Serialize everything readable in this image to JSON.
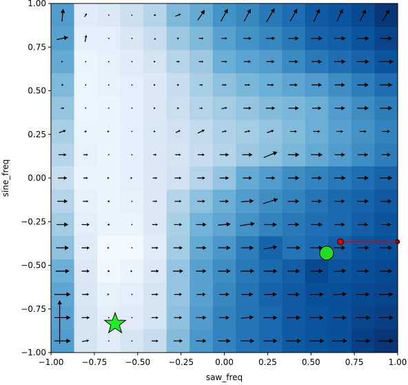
{
  "chart_data": {
    "type": "heatmap",
    "title": "",
    "xlabel": "saw_freq",
    "ylabel": "sine_freq",
    "xlim": [
      -1.0,
      1.0
    ],
    "ylim": [
      -1.0,
      1.0
    ],
    "xticks": [
      -1.0,
      -0.75,
      -0.5,
      -0.25,
      0.0,
      0.25,
      0.5,
      0.75,
      1.0
    ],
    "yticks": [
      -1.0,
      -0.75,
      -0.5,
      -0.25,
      0.0,
      0.25,
      0.5,
      0.75,
      1.0
    ],
    "xtick_labels": [
      "−1.00",
      "−0.75",
      "−0.50",
      "−0.25",
      "0.00",
      "0.25",
      "0.50",
      "0.75",
      "1.00"
    ],
    "ytick_labels": [
      "−1.00",
      "−0.75",
      "−0.50",
      "−0.25",
      "0.00",
      "0.25",
      "0.50",
      "0.75",
      "1.00"
    ],
    "grid": false,
    "heatmap": {
      "colormap": "Blues",
      "color_range": [
        0,
        1
      ],
      "cols": 15,
      "rows": 15,
      "values": [
        [
          0.58,
          0.12,
          0.14,
          0.22,
          0.3,
          0.45,
          0.52,
          0.62,
          0.66,
          0.72,
          0.76,
          0.84,
          0.86,
          0.9,
          0.97
        ],
        [
          0.56,
          0.09,
          0.1,
          0.16,
          0.24,
          0.38,
          0.45,
          0.56,
          0.62,
          0.67,
          0.72,
          0.8,
          0.82,
          0.86,
          0.92
        ],
        [
          0.52,
          0.06,
          0.08,
          0.12,
          0.18,
          0.3,
          0.38,
          0.5,
          0.55,
          0.58,
          0.65,
          0.72,
          0.76,
          0.8,
          0.86
        ],
        [
          0.45,
          0.05,
          0.07,
          0.1,
          0.14,
          0.24,
          0.34,
          0.42,
          0.46,
          0.5,
          0.54,
          0.58,
          0.64,
          0.7,
          0.76
        ],
        [
          0.4,
          0.05,
          0.06,
          0.09,
          0.14,
          0.22,
          0.3,
          0.36,
          0.4,
          0.44,
          0.46,
          0.5,
          0.58,
          0.64,
          0.7
        ],
        [
          0.34,
          0.06,
          0.06,
          0.1,
          0.15,
          0.2,
          0.26,
          0.32,
          0.36,
          0.4,
          0.44,
          0.5,
          0.56,
          0.62,
          0.68
        ],
        [
          0.3,
          0.08,
          0.06,
          0.1,
          0.14,
          0.18,
          0.24,
          0.3,
          0.38,
          0.42,
          0.46,
          0.52,
          0.58,
          0.64,
          0.7
        ],
        [
          0.24,
          0.06,
          0.06,
          0.1,
          0.14,
          0.2,
          0.3,
          0.4,
          0.52,
          0.58,
          0.64,
          0.68,
          0.72,
          0.76,
          0.8
        ],
        [
          0.3,
          0.08,
          0.06,
          0.08,
          0.14,
          0.3,
          0.42,
          0.5,
          0.58,
          0.64,
          0.68,
          0.74,
          0.78,
          0.8,
          0.84
        ],
        [
          0.36,
          0.1,
          0.06,
          0.06,
          0.14,
          0.34,
          0.48,
          0.54,
          0.62,
          0.68,
          0.72,
          0.76,
          0.78,
          0.82,
          0.86
        ],
        [
          0.42,
          0.12,
          0.02,
          0.02,
          0.12,
          0.36,
          0.52,
          0.6,
          0.7,
          0.8,
          0.74,
          0.78,
          0.82,
          0.86,
          0.88
        ],
        [
          0.5,
          0.14,
          0.04,
          0.06,
          0.14,
          0.4,
          0.56,
          0.64,
          0.72,
          0.78,
          0.82,
          0.9,
          0.86,
          0.88,
          0.9
        ],
        [
          0.54,
          0.16,
          0.08,
          0.1,
          0.18,
          0.4,
          0.56,
          0.66,
          0.74,
          0.8,
          0.84,
          0.88,
          0.88,
          0.9,
          0.92
        ],
        [
          0.56,
          0.18,
          0.1,
          0.12,
          0.18,
          0.42,
          0.58,
          0.68,
          0.74,
          0.78,
          0.84,
          0.86,
          0.88,
          0.92,
          0.94
        ],
        [
          0.58,
          0.18,
          0.12,
          0.18,
          0.24,
          0.44,
          0.6,
          0.68,
          0.74,
          0.78,
          0.84,
          0.86,
          0.88,
          0.94,
          0.98
        ]
      ]
    },
    "quiver": {
      "color": "#000000",
      "unit": "fraction of cell width",
      "vectors": [
        [
          [
            0.05,
            0.55
          ],
          [
            0.1,
            0.15
          ],
          [
            0.0,
            0.0
          ],
          [
            0.0,
            0.0
          ],
          [
            0.1,
            0.0
          ],
          [
            0.25,
            0.1
          ],
          [
            0.3,
            0.45
          ],
          [
            0.3,
            0.55
          ],
          [
            0.3,
            0.55
          ],
          [
            0.35,
            0.6
          ],
          [
            0.3,
            0.55
          ],
          [
            0.25,
            0.55
          ],
          [
            0.25,
            0.55
          ],
          [
            0.25,
            0.5
          ],
          [
            0.3,
            0.5
          ]
        ],
        [
          [
            0.5,
            0.1
          ],
          [
            0.05,
            0.3
          ],
          [
            0.0,
            0.0
          ],
          [
            0.0,
            0.0
          ],
          [
            0.0,
            0.05
          ],
          [
            0.1,
            0.0
          ],
          [
            0.2,
            0.0
          ],
          [
            0.25,
            0.0
          ],
          [
            0.35,
            0.0
          ],
          [
            0.4,
            0.0
          ],
          [
            0.45,
            0.0
          ],
          [
            0.5,
            0.0
          ],
          [
            0.5,
            0.0
          ],
          [
            0.55,
            0.0
          ],
          [
            0.55,
            0.0
          ]
        ],
        [
          [
            0.05,
            0.0
          ],
          [
            0.0,
            0.0
          ],
          [
            0.0,
            0.0
          ],
          [
            0.0,
            0.0
          ],
          [
            0.05,
            0.0
          ],
          [
            0.15,
            0.0
          ],
          [
            0.2,
            0.0
          ],
          [
            0.25,
            0.0
          ],
          [
            0.3,
            0.0
          ],
          [
            0.35,
            0.0
          ],
          [
            0.4,
            0.0
          ],
          [
            0.45,
            0.0
          ],
          [
            0.5,
            0.0
          ],
          [
            0.55,
            0.0
          ],
          [
            0.65,
            0.0
          ]
        ],
        [
          [
            0.1,
            0.0
          ],
          [
            0.0,
            0.0
          ],
          [
            0.0,
            0.0
          ],
          [
            0.0,
            0.0
          ],
          [
            0.05,
            0.0
          ],
          [
            0.1,
            0.0
          ],
          [
            0.15,
            0.0
          ],
          [
            0.2,
            0.0
          ],
          [
            0.25,
            0.0
          ],
          [
            0.3,
            0.0
          ],
          [
            0.35,
            0.0
          ],
          [
            0.45,
            0.0
          ],
          [
            0.45,
            0.0
          ],
          [
            0.5,
            0.0
          ],
          [
            0.55,
            0.0
          ]
        ],
        [
          [
            0.15,
            0.0
          ],
          [
            0.0,
            0.0
          ],
          [
            0.0,
            0.0
          ],
          [
            0.0,
            0.0
          ],
          [
            0.05,
            0.0
          ],
          [
            0.1,
            0.0
          ],
          [
            0.15,
            0.0
          ],
          [
            0.25,
            0.05
          ],
          [
            0.35,
            0.0
          ],
          [
            0.4,
            0.0
          ],
          [
            0.45,
            0.0
          ],
          [
            0.4,
            0.0
          ],
          [
            0.45,
            0.0
          ],
          [
            0.5,
            0.0
          ],
          [
            0.55,
            0.0
          ]
        ],
        [
          [
            0.3,
            0.1
          ],
          [
            0.1,
            0.05
          ],
          [
            0.05,
            0.0
          ],
          [
            0.0,
            0.0
          ],
          [
            0.05,
            0.0
          ],
          [
            0.2,
            0.1
          ],
          [
            0.3,
            0.15
          ],
          [
            0.2,
            0.05
          ],
          [
            0.25,
            0.05
          ],
          [
            0.3,
            0.1
          ],
          [
            0.3,
            0.0
          ],
          [
            0.3,
            0.0
          ],
          [
            0.3,
            0.0
          ],
          [
            0.3,
            0.0
          ],
          [
            0.35,
            0.0
          ]
        ],
        [
          [
            0.35,
            0.0
          ],
          [
            0.2,
            0.0
          ],
          [
            0.0,
            0.0
          ],
          [
            0.0,
            0.0
          ],
          [
            0.15,
            0.0
          ],
          [
            0.25,
            0.0
          ],
          [
            0.3,
            0.0
          ],
          [
            0.4,
            0.0
          ],
          [
            0.45,
            0.0
          ],
          [
            0.6,
            0.25
          ],
          [
            0.5,
            0.0
          ],
          [
            0.5,
            0.0
          ],
          [
            0.45,
            0.0
          ],
          [
            0.45,
            0.0
          ],
          [
            0.4,
            0.0
          ]
        ],
        [
          [
            0.4,
            0.0
          ],
          [
            0.2,
            0.0
          ],
          [
            0.05,
            0.0
          ],
          [
            0.05,
            0.0
          ],
          [
            0.2,
            0.0
          ],
          [
            0.3,
            0.0
          ],
          [
            0.35,
            0.0
          ],
          [
            0.4,
            0.0
          ],
          [
            0.4,
            0.0
          ],
          [
            0.4,
            0.0
          ],
          [
            0.5,
            0.0
          ],
          [
            0.45,
            0.0
          ],
          [
            0.5,
            0.0
          ],
          [
            0.5,
            0.0
          ],
          [
            0.55,
            0.0
          ]
        ],
        [
          [
            0.45,
            0.0
          ],
          [
            0.25,
            0.0
          ],
          [
            0.1,
            0.0
          ],
          [
            0.0,
            0.0
          ],
          [
            0.2,
            0.0
          ],
          [
            0.3,
            0.0
          ],
          [
            0.35,
            0.0
          ],
          [
            0.4,
            0.0
          ],
          [
            0.55,
            0.05
          ],
          [
            0.65,
            0.2
          ],
          [
            0.5,
            0.0
          ],
          [
            0.45,
            0.0
          ],
          [
            0.45,
            0.0
          ],
          [
            0.5,
            0.0
          ],
          [
            0.5,
            0.0
          ]
        ],
        [
          [
            0.5,
            0.0
          ],
          [
            0.35,
            0.0
          ],
          [
            0.1,
            0.0
          ],
          [
            0.0,
            0.0
          ],
          [
            0.25,
            0.0
          ],
          [
            0.35,
            0.0
          ],
          [
            0.45,
            0.0
          ],
          [
            0.55,
            0.05
          ],
          [
            0.65,
            0.1
          ],
          [
            0.55,
            0.0
          ],
          [
            0.5,
            0.0
          ],
          [
            0.5,
            0.0
          ],
          [
            0.45,
            0.0
          ],
          [
            0.45,
            0.0
          ],
          [
            0.45,
            0.0
          ]
        ],
        [
          [
            0.55,
            0.0
          ],
          [
            0.35,
            0.0
          ],
          [
            0.05,
            0.0
          ],
          [
            0.0,
            0.0
          ],
          [
            0.3,
            0.0
          ],
          [
            0.4,
            0.0
          ],
          [
            0.45,
            0.0
          ],
          [
            0.55,
            0.0
          ],
          [
            0.55,
            0.0
          ],
          [
            0.6,
            0.1
          ],
          [
            0.6,
            0.0
          ],
          [
            0.55,
            0.0
          ],
          [
            0.5,
            0.0
          ],
          [
            0.55,
            0.0
          ],
          [
            0.55,
            0.0
          ]
        ],
        [
          [
            0.6,
            0.0
          ],
          [
            0.35,
            0.0
          ],
          [
            0.1,
            0.0
          ],
          [
            0.05,
            0.0
          ],
          [
            0.35,
            0.0
          ],
          [
            0.45,
            0.0
          ],
          [
            0.45,
            0.0
          ],
          [
            0.55,
            0.0
          ],
          [
            0.6,
            0.0
          ],
          [
            0.6,
            0.0
          ],
          [
            0.55,
            0.0
          ],
          [
            0.55,
            0.0
          ],
          [
            0.55,
            0.05
          ],
          [
            0.55,
            0.0
          ],
          [
            0.55,
            0.0
          ]
        ],
        [
          [
            0.7,
            0.0
          ],
          [
            0.3,
            0.0
          ],
          [
            0.05,
            0.0
          ],
          [
            0.0,
            0.0
          ],
          [
            0.3,
            0.0
          ],
          [
            0.35,
            0.0
          ],
          [
            0.4,
            0.0
          ],
          [
            0.45,
            0.0
          ],
          [
            0.5,
            0.0
          ],
          [
            0.55,
            0.0
          ],
          [
            0.55,
            0.0
          ],
          [
            0.6,
            0.0
          ],
          [
            0.6,
            0.05
          ],
          [
            0.6,
            0.0
          ],
          [
            0.6,
            0.0
          ]
        ],
        [
          [
            0.7,
            0.0
          ],
          [
            0.35,
            0.0
          ],
          [
            0.0,
            0.0
          ],
          [
            0.0,
            0.0
          ],
          [
            0.3,
            0.0
          ],
          [
            0.35,
            0.0
          ],
          [
            0.45,
            0.0
          ],
          [
            0.45,
            0.0
          ],
          [
            0.55,
            0.05
          ],
          [
            0.6,
            0.0
          ],
          [
            0.6,
            0.0
          ],
          [
            0.6,
            0.0
          ],
          [
            0.6,
            0.0
          ],
          [
            0.65,
            0.0
          ],
          [
            0.65,
            0.0
          ]
        ],
        [
          [
            0.7,
            0.0
          ],
          [
            0.3,
            0.05
          ],
          [
            0.0,
            0.0
          ],
          [
            0.0,
            0.0
          ],
          [
            0.3,
            0.0
          ],
          [
            0.4,
            0.0
          ],
          [
            0.45,
            0.0
          ],
          [
            0.55,
            0.0
          ],
          [
            0.6,
            0.0
          ],
          [
            0.6,
            0.0
          ],
          [
            0.65,
            0.0
          ],
          [
            0.65,
            0.0
          ],
          [
            0.65,
            0.0
          ],
          [
            0.65,
            0.0
          ],
          [
            0.65,
            0.0
          ]
        ]
      ]
    },
    "annotations": {
      "star": {
        "x": -0.63,
        "y": -0.835,
        "color": "#22ee22"
      },
      "circle": {
        "x": 0.59,
        "y": -0.43,
        "color": "#22dd22"
      },
      "trajectory": {
        "color": "#e00000",
        "points": [
          [
            0.67,
            -0.365
          ],
          [
            1.0,
            -0.365
          ]
        ]
      },
      "left_arrow": {
        "x": -0.95,
        "y": -0.95,
        "dx": 0.0,
        "dy": 0.25
      }
    }
  }
}
